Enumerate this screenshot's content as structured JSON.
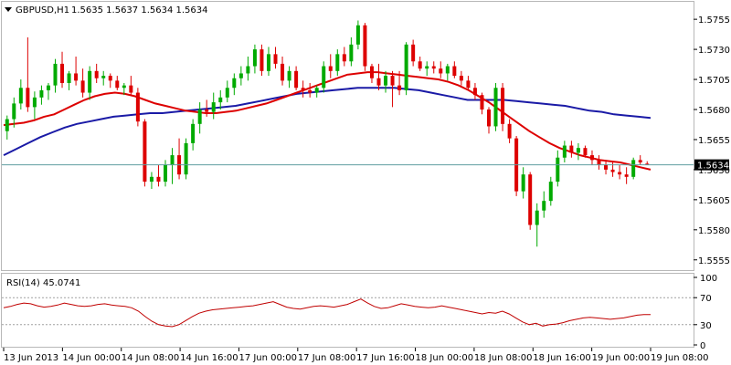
{
  "header": {
    "symbol_label": "GBPUSD,H1",
    "ohlc_text": "1.5635 1.5637 1.5634 1.5634"
  },
  "rsi_header": {
    "label": "RSI(14) 45.0741"
  },
  "price_marker": "1.5634",
  "colors": {
    "bull": "#00aa00",
    "bear": "#dd0000",
    "ma_fast": "#dd0000",
    "ma_slow": "#1a1aa6",
    "rsi": "#c00000",
    "current_line": "#5f9ea0",
    "marker_bg": "#000000"
  },
  "chart_data": [
    {
      "type": "candlestick",
      "title": "GBPUSD,H1",
      "y_ticks": [
        "1.5755",
        "1.5730",
        "1.5705",
        "1.5680",
        "1.5655",
        "1.5630",
        "1.5605",
        "1.5580",
        "1.5555"
      ],
      "x_ticks": [
        "13 Jun 2013",
        "14 Jun 00:00",
        "14 Jun 08:00",
        "14 Jun 16:00",
        "17 Jun 00:00",
        "17 Jun 08:00",
        "17 Jun 16:00",
        "18 Jun 00:00",
        "18 Jun 08:00",
        "18 Jun 16:00",
        "19 Jun 00:00",
        "19 Jun 08:00"
      ],
      "ylim": [
        1.5548,
        1.5768
      ],
      "current_price": 1.5634,
      "candles": [
        [
          1.5662,
          1.5675,
          1.5655,
          1.5672
        ],
        [
          1.5672,
          1.569,
          1.5665,
          1.5685
        ],
        [
          1.5685,
          1.5705,
          1.568,
          1.5698
        ],
        [
          1.5698,
          1.574,
          1.5678,
          1.5682
        ],
        [
          1.5682,
          1.5695,
          1.5672,
          1.569
        ],
        [
          1.569,
          1.57,
          1.5684,
          1.5696
        ],
        [
          1.5696,
          1.5702,
          1.5688,
          1.57
        ],
        [
          1.57,
          1.5722,
          1.5694,
          1.5718
        ],
        [
          1.5718,
          1.5728,
          1.5698,
          1.5702
        ],
        [
          1.5702,
          1.5712,
          1.5696,
          1.571
        ],
        [
          1.571,
          1.5724,
          1.57,
          1.5704
        ],
        [
          1.5704,
          1.5714,
          1.569,
          1.5694
        ],
        [
          1.5694,
          1.5716,
          1.5688,
          1.5712
        ],
        [
          1.5712,
          1.5718,
          1.5702,
          1.5706
        ],
        [
          1.5706,
          1.5712,
          1.57,
          1.5708
        ],
        [
          1.5708,
          1.571,
          1.5698,
          1.5704
        ],
        [
          1.5704,
          1.5708,
          1.5696,
          1.5698
        ],
        [
          1.5698,
          1.5702,
          1.5692,
          1.57
        ],
        [
          1.57,
          1.5708,
          1.5692,
          1.5694
        ],
        [
          1.5694,
          1.5698,
          1.5666,
          1.567
        ],
        [
          1.567,
          1.5672,
          1.5616,
          1.562
        ],
        [
          1.562,
          1.5628,
          1.5614,
          1.5624
        ],
        [
          1.5624,
          1.5634,
          1.5616,
          1.562
        ],
        [
          1.562,
          1.5638,
          1.5616,
          1.5634
        ],
        [
          1.5634,
          1.5648,
          1.5618,
          1.5642
        ],
        [
          1.5642,
          1.5656,
          1.5622,
          1.5626
        ],
        [
          1.5626,
          1.5656,
          1.5622,
          1.5652
        ],
        [
          1.5652,
          1.5672,
          1.5646,
          1.5668
        ],
        [
          1.5668,
          1.5686,
          1.566,
          1.568
        ],
        [
          1.568,
          1.5688,
          1.5674,
          1.5678
        ],
        [
          1.5678,
          1.5694,
          1.5672,
          1.5686
        ],
        [
          1.5686,
          1.5696,
          1.568,
          1.569
        ],
        [
          1.569,
          1.5704,
          1.5686,
          1.5698
        ],
        [
          1.5698,
          1.571,
          1.5692,
          1.5706
        ],
        [
          1.5706,
          1.5716,
          1.57,
          1.571
        ],
        [
          1.571,
          1.5724,
          1.5704,
          1.5716
        ],
        [
          1.5716,
          1.5734,
          1.571,
          1.573
        ],
        [
          1.573,
          1.5734,
          1.5708,
          1.5712
        ],
        [
          1.5712,
          1.5732,
          1.5708,
          1.5726
        ],
        [
          1.5726,
          1.5732,
          1.5714,
          1.5718
        ],
        [
          1.5718,
          1.5724,
          1.57,
          1.5704
        ],
        [
          1.5704,
          1.5716,
          1.5698,
          1.5712
        ],
        [
          1.5712,
          1.5716,
          1.5696,
          1.5698
        ],
        [
          1.5698,
          1.5704,
          1.569,
          1.5696
        ],
        [
          1.5696,
          1.5702,
          1.569,
          1.5694
        ],
        [
          1.5694,
          1.57,
          1.569,
          1.5698
        ],
        [
          1.5698,
          1.572,
          1.5694,
          1.5716
        ],
        [
          1.5716,
          1.5726,
          1.5706,
          1.5712
        ],
        [
          1.5712,
          1.573,
          1.5708,
          1.5726
        ],
        [
          1.5726,
          1.5732,
          1.5716,
          1.572
        ],
        [
          1.572,
          1.574,
          1.5716,
          1.5734
        ],
        [
          1.5734,
          1.5754,
          1.573,
          1.575
        ],
        [
          1.575,
          1.5752,
          1.5712,
          1.5716
        ],
        [
          1.5716,
          1.5718,
          1.5702,
          1.5706
        ],
        [
          1.5706,
          1.5718,
          1.5696,
          1.57
        ],
        [
          1.57,
          1.5712,
          1.5694,
          1.5708
        ],
        [
          1.5708,
          1.5712,
          1.5682,
          1.57
        ],
        [
          1.57,
          1.5712,
          1.5692,
          1.5696
        ],
        [
          1.5696,
          1.5736,
          1.5692,
          1.5734
        ],
        [
          1.5734,
          1.5738,
          1.5716,
          1.572
        ],
        [
          1.572,
          1.5724,
          1.5712,
          1.5714
        ],
        [
          1.5714,
          1.572,
          1.5708,
          1.5716
        ],
        [
          1.5716,
          1.572,
          1.571,
          1.5714
        ],
        [
          1.5714,
          1.572,
          1.5706,
          1.571
        ],
        [
          1.571,
          1.5718,
          1.5704,
          1.5716
        ],
        [
          1.5716,
          1.572,
          1.5706,
          1.5708
        ],
        [
          1.5708,
          1.5712,
          1.57,
          1.5704
        ],
        [
          1.5704,
          1.5708,
          1.5696,
          1.5698
        ],
        [
          1.5698,
          1.5702,
          1.5688,
          1.5692
        ],
        [
          1.5692,
          1.5694,
          1.5676,
          1.568
        ],
        [
          1.568,
          1.5682,
          1.566,
          1.5666
        ],
        [
          1.5666,
          1.5702,
          1.5662,
          1.5698
        ],
        [
          1.5698,
          1.5702,
          1.5662,
          1.5668
        ],
        [
          1.5668,
          1.5672,
          1.5652,
          1.5656
        ],
        [
          1.5656,
          1.5658,
          1.5608,
          1.5612
        ],
        [
          1.5612,
          1.5632,
          1.5606,
          1.5626
        ],
        [
          1.5626,
          1.5628,
          1.558,
          1.5584
        ],
        [
          1.5584,
          1.5602,
          1.5566,
          1.5596
        ],
        [
          1.5596,
          1.5612,
          1.559,
          1.5604
        ],
        [
          1.5604,
          1.5624,
          1.56,
          1.562
        ],
        [
          1.562,
          1.5646,
          1.5616,
          1.564
        ],
        [
          1.564,
          1.5654,
          1.5636,
          1.565
        ],
        [
          1.565,
          1.5654,
          1.564,
          1.5644
        ],
        [
          1.5644,
          1.5652,
          1.5638,
          1.5648
        ],
        [
          1.5648,
          1.565,
          1.564,
          1.5642
        ],
        [
          1.5642,
          1.5646,
          1.5634,
          1.5638
        ],
        [
          1.5638,
          1.5642,
          1.563,
          1.5634
        ],
        [
          1.5634,
          1.5638,
          1.5626,
          1.563
        ],
        [
          1.563,
          1.5636,
          1.5624,
          1.5628
        ],
        [
          1.5628,
          1.5634,
          1.5622,
          1.5626
        ],
        [
          1.5626,
          1.5632,
          1.5618,
          1.5624
        ],
        [
          1.5624,
          1.564,
          1.5622,
          1.5638
        ],
        [
          1.5638,
          1.5642,
          1.5634,
          1.5636
        ],
        [
          1.5635,
          1.5637,
          1.5634,
          1.5634
        ]
      ],
      "series": [
        {
          "name": "",
          "values": [
            1.5667,
            1.5668,
            1.5669,
            1.5671,
            1.5674,
            1.5676,
            1.568,
            1.5684,
            1.5688,
            1.5691,
            1.5693,
            1.5694,
            1.5693,
            1.5691,
            1.5688,
            1.5685,
            1.5683,
            1.5681,
            1.5679,
            1.5678,
            1.5677,
            1.5677,
            1.5678,
            1.5679,
            1.5681,
            1.5683,
            1.5685,
            1.5688,
            1.5691,
            1.5694,
            1.5697,
            1.57,
            1.5703,
            1.5706,
            1.5709,
            1.571,
            1.5711,
            1.5711,
            1.571,
            1.5709,
            1.5708,
            1.5707,
            1.5706,
            1.5705,
            1.5703,
            1.57,
            1.5696,
            1.5691,
            1.5686,
            1.568,
            1.5674,
            1.5668,
            1.5662,
            1.5657,
            1.5652,
            1.5648,
            1.5645,
            1.5642,
            1.564,
            1.5638,
            1.5637,
            1.5636,
            1.5634,
            1.5632,
            1.563
          ]
        },
        {
          "name": "",
          "values": [
            1.5642,
            1.5647,
            1.5652,
            1.5657,
            1.5661,
            1.5665,
            1.5668,
            1.567,
            1.5672,
            1.5674,
            1.5675,
            1.5676,
            1.5677,
            1.5677,
            1.5678,
            1.5679,
            1.568,
            1.5681,
            1.5682,
            1.5683,
            1.5685,
            1.5687,
            1.5689,
            1.5691,
            1.5693,
            1.5694,
            1.5695,
            1.5696,
            1.5697,
            1.5698,
            1.5698,
            1.5698,
            1.5698,
            1.5697,
            1.5696,
            1.5694,
            1.5692,
            1.569,
            1.5688,
            1.5688,
            1.5688,
            1.5688,
            1.5687,
            1.5686,
            1.5685,
            1.5684,
            1.5683,
            1.5681,
            1.5679,
            1.5678,
            1.5676,
            1.5675,
            1.5674,
            1.5673
          ]
        }
      ]
    },
    {
      "type": "line",
      "title": "RSI(14) 45.0741",
      "y_ticks": [
        "100",
        "70",
        "30",
        "0"
      ],
      "ylim": [
        0,
        100
      ],
      "levels": [
        70,
        30
      ],
      "series": [
        {
          "name": "RSI(14)",
          "values": [
            55,
            57,
            60,
            62,
            61,
            58,
            56,
            57,
            59,
            62,
            60,
            58,
            57,
            58,
            60,
            61,
            59,
            58,
            57,
            55,
            50,
            42,
            35,
            30,
            28,
            27,
            30,
            36,
            42,
            47,
            50,
            52,
            53,
            54,
            55,
            56,
            57,
            58,
            60,
            62,
            64,
            60,
            56,
            54,
            53,
            55,
            57,
            58,
            57,
            56,
            58,
            60,
            64,
            68,
            62,
            57,
            54,
            55,
            58,
            61,
            59,
            57,
            56,
            55,
            56,
            58,
            56,
            54,
            52,
            50,
            48,
            46,
            48,
            47,
            50,
            46,
            40,
            34,
            30,
            32,
            28,
            30,
            31,
            33,
            36,
            38,
            40,
            41,
            40,
            39,
            38,
            39,
            40,
            42,
            44,
            45,
            45
          ]
        }
      ]
    }
  ]
}
